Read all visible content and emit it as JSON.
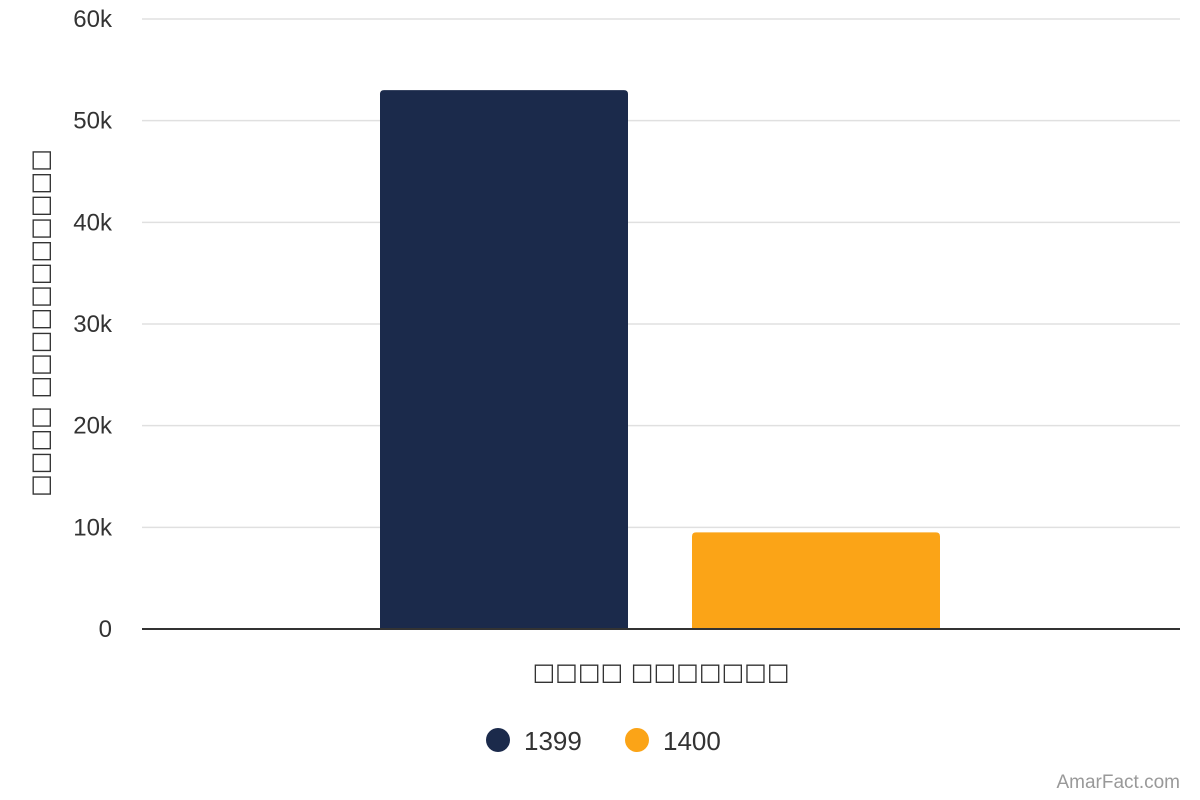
{
  "chart_data": {
    "type": "bar",
    "categories": [
      "□□□□ □□□□□□□"
    ],
    "series": [
      {
        "name": "1399",
        "values": [
          53000
        ],
        "color": "#1b2a4b"
      },
      {
        "name": "1400",
        "values": [
          9500
        ],
        "color": "#fba417"
      }
    ],
    "ylim": [
      0,
      60000
    ],
    "yticks": [
      0,
      10000,
      20000,
      30000,
      40000,
      50000,
      60000
    ],
    "ytick_labels": [
      "0",
      "10k",
      "20k",
      "30k",
      "40k",
      "50k",
      "60k"
    ],
    "xlabel": "□□□□ □□□□□□□",
    "ylabel": "□□□□ □□□□□□□□□□□",
    "grid": true,
    "legend": "bottom-center"
  },
  "credit": "AmarFact.com"
}
